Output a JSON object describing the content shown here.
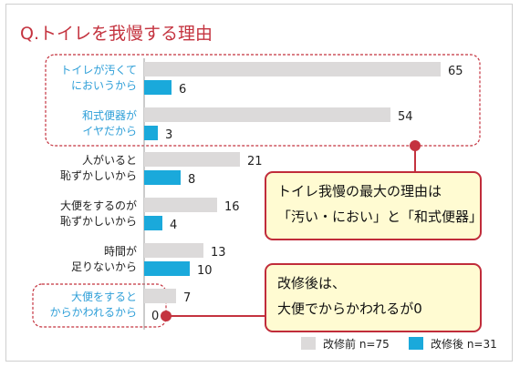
{
  "title": "Q.トイレを我慢する理由",
  "colors": {
    "before": "#dcdada",
    "after": "#1aa9db",
    "accent": "#c4333f",
    "highlight_label": "#2f9fd8",
    "callout_bg": "#fffbd2"
  },
  "chart_data": {
    "type": "bar",
    "orientation": "horizontal",
    "categories": [
      [
        "トイレが汚くて",
        "においうから"
      ],
      [
        "和式便器が",
        "イヤだから"
      ],
      [
        "人がいると",
        "恥ずかしいから"
      ],
      [
        "大便をするのが",
        "恥ずかしいから"
      ],
      [
        "時間が",
        "足りないから"
      ],
      [
        "大便をすると",
        "からかわれるから"
      ]
    ],
    "series": [
      {
        "name": "改修前 n=75",
        "values": [
          65,
          54,
          21,
          16,
          13,
          7
        ]
      },
      {
        "name": "改修後 n=31",
        "values": [
          6,
          3,
          8,
          4,
          10,
          0
        ]
      }
    ],
    "xlim": [
      0,
      65
    ],
    "highlighted_categories": [
      0,
      1,
      5
    ],
    "legend_position": "bottom-right"
  },
  "callouts": [
    {
      "lines": [
        "トイレ我慢の最大の理由は",
        "「汚い・におい」と「和式便器」"
      ]
    },
    {
      "lines": [
        "改修後は、",
        "大便でからかわれるが0"
      ]
    }
  ]
}
